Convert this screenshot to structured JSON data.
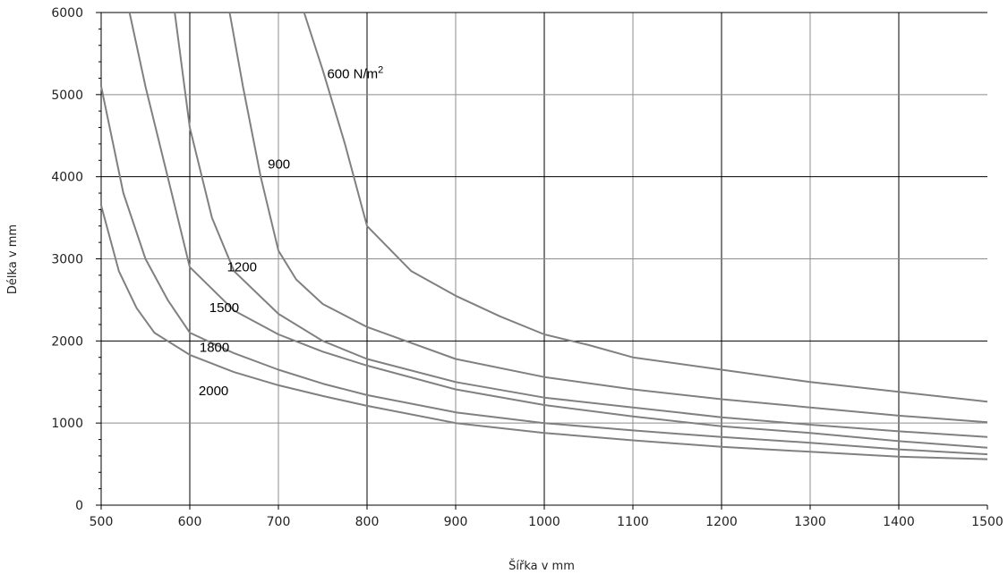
{
  "chart_data": {
    "type": "line",
    "title": "",
    "xlabel": "Šířka v mm",
    "ylabel": "Délka v mm",
    "xlim": [
      500,
      1500
    ],
    "ylim": [
      0,
      6000
    ],
    "x_ticks": [
      "500",
      "600",
      "700",
      "800",
      "900",
      "1000",
      "1100",
      "1200",
      "1300",
      "1400",
      "1500"
    ],
    "y_ticks": [
      "0",
      "1000",
      "2000",
      "3000",
      "4000",
      "5000",
      "6000"
    ],
    "grid": true,
    "legend": "none",
    "colors": {
      "series": "#808080",
      "grid_major": "#000000",
      "grid_minor": "#8c8c8c",
      "axis": "#000000"
    },
    "series": [
      {
        "name": "600 N/m2",
        "label_main": "600 N/m",
        "label_sup": "2",
        "x": [
          729,
          750,
          775,
          800,
          850,
          900,
          950,
          1000,
          1050,
          1100,
          1200,
          1300,
          1400,
          1500
        ],
        "y": [
          6000,
          5300,
          4400,
          3400,
          2850,
          2550,
          2300,
          2080,
          1950,
          1800,
          1650,
          1500,
          1380,
          1260
        ]
      },
      {
        "name": "900",
        "x": [
          645,
          660,
          680,
          700,
          720,
          750,
          800,
          900,
          1000,
          1100,
          1200,
          1300,
          1400,
          1500
        ],
        "y": [
          6000,
          5100,
          4000,
          3100,
          2750,
          2450,
          2170,
          1780,
          1560,
          1410,
          1290,
          1190,
          1090,
          1010
        ]
      },
      {
        "name": "1200",
        "x": [
          583,
          600,
          625,
          650,
          700,
          750,
          800,
          900,
          1000,
          1100,
          1200,
          1300,
          1400,
          1500
        ],
        "y": [
          6000,
          4600,
          3500,
          2850,
          2330,
          2000,
          1780,
          1500,
          1310,
          1190,
          1070,
          980,
          900,
          830
        ]
      },
      {
        "name": "1500",
        "x": [
          532,
          550,
          575,
          600,
          650,
          700,
          750,
          800,
          900,
          1000,
          1100,
          1200,
          1300,
          1400,
          1500
        ],
        "y": [
          6000,
          5100,
          4000,
          2900,
          2370,
          2080,
          1870,
          1700,
          1410,
          1220,
          1080,
          960,
          880,
          780,
          700
        ]
      },
      {
        "name": "1800",
        "x": [
          500,
          525,
          550,
          575,
          600,
          650,
          700,
          750,
          800,
          900,
          1000,
          1100,
          1200,
          1300,
          1400,
          1500
        ],
        "y": [
          5100,
          3800,
          3000,
          2500,
          2100,
          1850,
          1650,
          1480,
          1340,
          1130,
          1000,
          910,
          830,
          760,
          680,
          620
        ]
      },
      {
        "name": "2000",
        "x": [
          500,
          520,
          540,
          560,
          600,
          650,
          700,
          750,
          800,
          900,
          1000,
          1100,
          1200,
          1300,
          1400,
          1500
        ],
        "y": [
          3650,
          2850,
          2400,
          2100,
          1830,
          1620,
          1460,
          1330,
          1210,
          1000,
          880,
          790,
          710,
          650,
          590,
          560
        ]
      }
    ],
    "annotations": [
      {
        "series": "600 N/m2",
        "text": "600 N/m",
        "sup": "2",
        "x": 755,
        "y": 5200
      },
      {
        "series": "900",
        "text": "900",
        "x": 688,
        "y": 4100
      },
      {
        "series": "1200",
        "text": "1200",
        "x": 642,
        "y": 2850
      },
      {
        "series": "1500",
        "text": "1500",
        "x": 622,
        "y": 2350
      },
      {
        "series": "1800",
        "text": "1800",
        "x": 611,
        "y": 1870
      },
      {
        "series": "2000",
        "text": "2000",
        "x": 610,
        "y": 1340
      }
    ]
  }
}
